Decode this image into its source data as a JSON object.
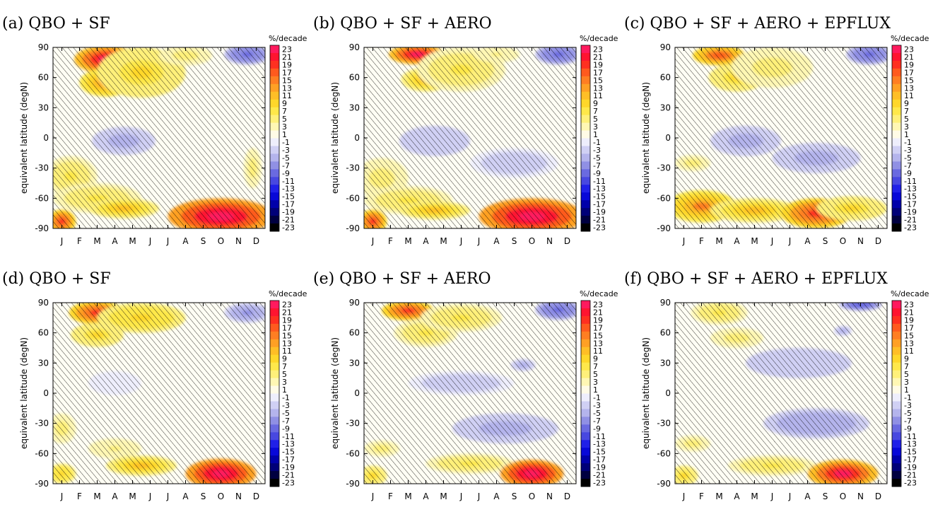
{
  "chart_data": {
    "type": "heatmap",
    "months": [
      "J",
      "F",
      "M",
      "A",
      "M",
      "J",
      "J",
      "A",
      "S",
      "O",
      "N",
      "D"
    ],
    "latitudes": [
      90,
      60,
      30,
      0,
      -30,
      -60,
      -90
    ],
    "ylabel": "equivalent latitude (degN)",
    "colorbar": {
      "unit": "%/decade",
      "levels": [
        23,
        21,
        19,
        17,
        15,
        13,
        11,
        9,
        7,
        5,
        3,
        1,
        -1,
        -3,
        -5,
        -7,
        -9,
        -11,
        -13,
        -15,
        -17,
        -19,
        -21,
        -23
      ]
    },
    "panels": [
      {
        "label": "(a) QBO + SF",
        "blobs": [
          {
            "m": 3.5,
            "lat": 78,
            "rm": 1.8,
            "rl": 14,
            "v": 22
          },
          {
            "m": 3.5,
            "lat": 55,
            "rm": 1.5,
            "rl": 14,
            "v": 14
          },
          {
            "m": 5.5,
            "lat": 65,
            "rm": 2.5,
            "rl": 25,
            "v": 8
          },
          {
            "m": 8,
            "lat": 82,
            "rm": 1.5,
            "rl": 10,
            "v": 5
          },
          {
            "m": 11.5,
            "lat": 83,
            "rm": 1.3,
            "rl": 10,
            "v": -9
          },
          {
            "m": 4.5,
            "lat": -3,
            "rm": 1.8,
            "rl": 14,
            "v": -5
          },
          {
            "m": 1.5,
            "lat": -38,
            "rm": 1.5,
            "rl": 20,
            "v": 6
          },
          {
            "m": 3,
            "lat": -60,
            "rm": 2.5,
            "rl": 15,
            "v": 6
          },
          {
            "m": 4.5,
            "lat": -70,
            "rm": 2,
            "rl": 10,
            "v": 11
          },
          {
            "m": 10,
            "lat": -78,
            "rm": 3,
            "rl": 18,
            "v": 25
          },
          {
            "m": 1,
            "lat": -83,
            "rm": 0.8,
            "rl": 12,
            "v": 18
          },
          {
            "m": 11.8,
            "lat": -30,
            "rm": 0.5,
            "rl": 20,
            "v": 5
          }
        ]
      },
      {
        "label": "(b) QBO + SF + AERO",
        "blobs": [
          {
            "m": 3.5,
            "lat": 83,
            "rm": 1.6,
            "rl": 10,
            "v": 23
          },
          {
            "m": 4,
            "lat": 58,
            "rm": 1.4,
            "rl": 12,
            "v": 11
          },
          {
            "m": 6,
            "lat": 68,
            "rm": 2.5,
            "rl": 22,
            "v": 6
          },
          {
            "m": 8,
            "lat": 83,
            "rm": 1.3,
            "rl": 8,
            "v": 4
          },
          {
            "m": 11.5,
            "lat": 83,
            "rm": 1.3,
            "rl": 10,
            "v": -9
          },
          {
            "m": 4.5,
            "lat": -3,
            "rm": 2,
            "rl": 15,
            "v": -4
          },
          {
            "m": 9,
            "lat": -25,
            "rm": 2.5,
            "rl": 15,
            "v": -3
          },
          {
            "m": 1.5,
            "lat": -40,
            "rm": 1.5,
            "rl": 20,
            "v": 5
          },
          {
            "m": 3,
            "lat": -62,
            "rm": 2.5,
            "rl": 14,
            "v": 6
          },
          {
            "m": 4.5,
            "lat": -72,
            "rm": 2,
            "rl": 9,
            "v": 10
          },
          {
            "m": 10,
            "lat": -78,
            "rm": 3,
            "rl": 18,
            "v": 25
          },
          {
            "m": 1,
            "lat": -83,
            "rm": 0.8,
            "rl": 12,
            "v": 18
          }
        ]
      },
      {
        "label": "(c) QBO + SF + AERO + EPFLUX",
        "blobs": [
          {
            "m": 3,
            "lat": 82,
            "rm": 1.5,
            "rl": 10,
            "v": 17
          },
          {
            "m": 4,
            "lat": 60,
            "rm": 1.6,
            "rl": 14,
            "v": 8
          },
          {
            "m": 6,
            "lat": 70,
            "rm": 2.3,
            "rl": 20,
            "v": 5
          },
          {
            "m": 11.5,
            "lat": 83,
            "rm": 1.3,
            "rl": 10,
            "v": -9
          },
          {
            "m": 4.5,
            "lat": -3,
            "rm": 2,
            "rl": 15,
            "v": -5
          },
          {
            "m": 8.5,
            "lat": -20,
            "rm": 2.5,
            "rl": 15,
            "v": -5
          },
          {
            "m": 2,
            "lat": -68,
            "rm": 2,
            "rl": 16,
            "v": 14
          },
          {
            "m": 5,
            "lat": -72,
            "rm": 2.5,
            "rl": 12,
            "v": 11
          },
          {
            "m": 8.5,
            "lat": -75,
            "rm": 2,
            "rl": 15,
            "v": 18
          },
          {
            "m": 10.5,
            "lat": -70,
            "rm": 2,
            "rl": 12,
            "v": 8
          },
          {
            "m": 1.5,
            "lat": -25,
            "rm": 1,
            "rl": 8,
            "v": 5
          }
        ]
      },
      {
        "label": "(d) QBO + SF",
        "blobs": [
          {
            "m": 3,
            "lat": 80,
            "rm": 1.6,
            "rl": 12,
            "v": 18
          },
          {
            "m": 3,
            "lat": 58,
            "rm": 1.5,
            "rl": 12,
            "v": 8
          },
          {
            "m": 5.5,
            "lat": 75,
            "rm": 2.5,
            "rl": 15,
            "v": 9
          },
          {
            "m": 11.5,
            "lat": 80,
            "rm": 1.3,
            "rl": 10,
            "v": -7
          },
          {
            "m": 4,
            "lat": 10,
            "rm": 1.5,
            "rl": 12,
            "v": -2
          },
          {
            "m": 1,
            "lat": -35,
            "rm": 0.8,
            "rl": 15,
            "v": 5
          },
          {
            "m": 4,
            "lat": -55,
            "rm": 1.5,
            "rl": 10,
            "v": 4
          },
          {
            "m": 5.5,
            "lat": -72,
            "rm": 2,
            "rl": 10,
            "v": 10
          },
          {
            "m": 10,
            "lat": -80,
            "rm": 2,
            "rl": 15,
            "v": 25
          },
          {
            "m": 1,
            "lat": -80,
            "rm": 0.8,
            "rl": 10,
            "v": 9
          }
        ]
      },
      {
        "label": "(e) QBO + SF + AERO",
        "blobs": [
          {
            "m": 3,
            "lat": 82,
            "rm": 1.5,
            "rl": 10,
            "v": 19
          },
          {
            "m": 4,
            "lat": 60,
            "rm": 1.8,
            "rl": 14,
            "v": 7
          },
          {
            "m": 6,
            "lat": 75,
            "rm": 2.3,
            "rl": 14,
            "v": 7
          },
          {
            "m": 11.5,
            "lat": 83,
            "rm": 1.3,
            "rl": 10,
            "v": -9
          },
          {
            "m": 9.5,
            "lat": 28,
            "rm": 0.7,
            "rl": 6,
            "v": -5
          },
          {
            "m": 6,
            "lat": 10,
            "rm": 3,
            "rl": 12,
            "v": -3
          },
          {
            "m": 8.5,
            "lat": -35,
            "rm": 3,
            "rl": 15,
            "v": -5
          },
          {
            "m": 1.5,
            "lat": -55,
            "rm": 1,
            "rl": 8,
            "v": 5
          },
          {
            "m": 6.5,
            "lat": -70,
            "rm": 2.5,
            "rl": 10,
            "v": 7
          },
          {
            "m": 10,
            "lat": -80,
            "rm": 1.8,
            "rl": 14,
            "v": 25
          },
          {
            "m": 1,
            "lat": -82,
            "rm": 0.8,
            "rl": 10,
            "v": 8
          }
        ]
      },
      {
        "label": "(f) QBO + SF + AERO + EPFLUX",
        "blobs": [
          {
            "m": 3,
            "lat": 80,
            "rm": 1.6,
            "rl": 12,
            "v": 6
          },
          {
            "m": 4,
            "lat": 55,
            "rm": 1.5,
            "rl": 10,
            "v": 5
          },
          {
            "m": 11,
            "lat": 88,
            "rm": 1.2,
            "rl": 6,
            "v": -10
          },
          {
            "m": 10,
            "lat": 62,
            "rm": 0.5,
            "rl": 5,
            "v": -5
          },
          {
            "m": 7.5,
            "lat": 30,
            "rm": 3,
            "rl": 15,
            "v": -4
          },
          {
            "m": 8.5,
            "lat": -30,
            "rm": 3,
            "rl": 15,
            "v": -6
          },
          {
            "m": 1.5,
            "lat": -50,
            "rm": 1,
            "rl": 8,
            "v": 5
          },
          {
            "m": 6,
            "lat": -72,
            "rm": 2.5,
            "rl": 10,
            "v": 6
          },
          {
            "m": 10,
            "lat": -80,
            "rm": 2,
            "rl": 14,
            "v": 22
          },
          {
            "m": 1,
            "lat": -82,
            "rm": 0.8,
            "rl": 10,
            "v": 8
          }
        ]
      }
    ]
  }
}
